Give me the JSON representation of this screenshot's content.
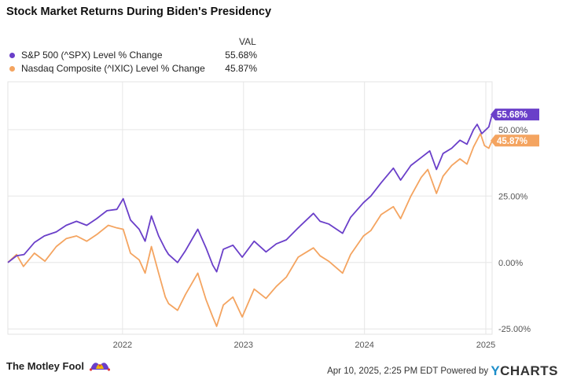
{
  "title": "Stock Market Returns During Biden's Presidency",
  "legend": {
    "header": "VAL",
    "items": [
      {
        "name": "S&P 500 (^SPX) Level % Change",
        "value": "55.68%",
        "color": "#6a3fc9"
      },
      {
        "name": "Nasdaq Composite (^IXIC) Level % Change",
        "value": "45.87%",
        "color": "#f4a460"
      }
    ]
  },
  "footer": {
    "brand": "The Motley Fool",
    "timestamp": "Apr 10, 2025, 2:25 PM EDT",
    "powered_by": "Powered by",
    "provider": "CHARTS",
    "provider_prefix": "Y"
  },
  "chart_data": {
    "type": "line",
    "title": "Stock Market Returns During Biden's Presidency",
    "xlabel": "",
    "ylabel": "",
    "x_ticks": [
      "2022",
      "2023",
      "2024",
      "2025"
    ],
    "y_ticks": [
      "-25.00%",
      "0.00%",
      "25.00%",
      "50.00%"
    ],
    "ylim": [
      -27,
      68
    ],
    "xlim": [
      "2021-01-20",
      "2025-01-20"
    ],
    "grid": true,
    "legend_position": "top-left",
    "end_labels": [
      "55.68%",
      "45.87%"
    ],
    "series": [
      {
        "name": "S&P 500 (^SPX) Level % Change",
        "color": "#6a3fc9",
        "x": [
          "2021-01-20",
          "2021-02-15",
          "2021-03-10",
          "2021-04-10",
          "2021-05-10",
          "2021-06-15",
          "2021-07-15",
          "2021-08-15",
          "2021-09-15",
          "2021-10-15",
          "2021-11-15",
          "2021-12-15",
          "2022-01-03",
          "2022-01-25",
          "2022-02-20",
          "2022-03-10",
          "2022-03-29",
          "2022-04-20",
          "2022-05-10",
          "2022-05-20",
          "2022-06-16",
          "2022-07-10",
          "2022-08-16",
          "2022-09-10",
          "2022-09-30",
          "2022-10-12",
          "2022-11-01",
          "2022-11-30",
          "2022-12-28",
          "2023-02-02",
          "2023-03-10",
          "2023-04-10",
          "2023-05-10",
          "2023-06-15",
          "2023-07-31",
          "2023-08-20",
          "2023-09-15",
          "2023-10-27",
          "2023-11-20",
          "2023-12-29",
          "2024-01-20",
          "2024-02-20",
          "2024-03-28",
          "2024-04-19",
          "2024-05-20",
          "2024-06-20",
          "2024-07-16",
          "2024-08-05",
          "2024-08-25",
          "2024-09-20",
          "2024-10-15",
          "2024-11-05",
          "2024-11-25",
          "2024-12-06",
          "2024-12-20",
          "2025-01-10",
          "2025-01-20"
        ],
        "y": [
          0.0,
          2.5,
          3.0,
          7.5,
          10.0,
          11.5,
          14.0,
          15.5,
          14.0,
          16.5,
          19.5,
          20.0,
          24.0,
          16.0,
          12.5,
          8.0,
          17.5,
          10.0,
          5.0,
          3.0,
          0.0,
          4.5,
          12.5,
          5.5,
          -1.0,
          -3.5,
          5.0,
          6.5,
          2.0,
          8.0,
          4.0,
          7.0,
          8.5,
          13.0,
          18.5,
          15.5,
          14.5,
          11.0,
          17.0,
          22.5,
          25.0,
          30.0,
          35.5,
          31.0,
          36.5,
          39.5,
          42.0,
          35.0,
          41.0,
          43.0,
          46.0,
          44.5,
          50.0,
          52.0,
          48.5,
          51.0,
          55.68
        ]
      },
      {
        "name": "Nasdaq Composite (^IXIC) Level % Change",
        "color": "#f4a460",
        "x": [
          "2021-01-20",
          "2021-02-15",
          "2021-03-08",
          "2021-04-10",
          "2021-05-12",
          "2021-06-15",
          "2021-07-15",
          "2021-08-15",
          "2021-09-15",
          "2021-10-15",
          "2021-11-19",
          "2021-12-15",
          "2022-01-03",
          "2022-01-25",
          "2022-02-20",
          "2022-03-10",
          "2022-03-29",
          "2022-04-20",
          "2022-05-10",
          "2022-05-20",
          "2022-06-16",
          "2022-07-10",
          "2022-08-16",
          "2022-09-10",
          "2022-09-30",
          "2022-10-12",
          "2022-11-01",
          "2022-11-30",
          "2022-12-28",
          "2023-02-02",
          "2023-03-10",
          "2023-04-10",
          "2023-05-10",
          "2023-06-15",
          "2023-07-31",
          "2023-08-20",
          "2023-09-15",
          "2023-10-27",
          "2023-11-20",
          "2023-12-29",
          "2024-01-20",
          "2024-02-20",
          "2024-03-28",
          "2024-04-19",
          "2024-05-20",
          "2024-06-20",
          "2024-07-10",
          "2024-08-05",
          "2024-08-25",
          "2024-09-20",
          "2024-10-15",
          "2024-11-05",
          "2024-11-25",
          "2024-12-16",
          "2024-12-28",
          "2025-01-10",
          "2025-01-20"
        ],
        "y": [
          0.0,
          3.0,
          -1.5,
          3.5,
          0.5,
          6.0,
          9.0,
          10.0,
          8.0,
          10.5,
          14.0,
          13.0,
          12.5,
          3.5,
          1.0,
          -4.0,
          6.0,
          -4.0,
          -13.0,
          -15.5,
          -18.0,
          -12.0,
          -4.0,
          -14.0,
          -20.5,
          -24.0,
          -16.0,
          -13.0,
          -20.5,
          -10.0,
          -13.5,
          -9.0,
          -5.5,
          2.0,
          5.5,
          2.5,
          0.5,
          -4.0,
          3.0,
          10.0,
          12.0,
          18.0,
          21.0,
          16.5,
          25.0,
          32.0,
          35.0,
          26.0,
          32.5,
          36.5,
          39.0,
          37.0,
          43.5,
          48.5,
          44.0,
          43.0,
          45.87
        ]
      }
    ]
  }
}
